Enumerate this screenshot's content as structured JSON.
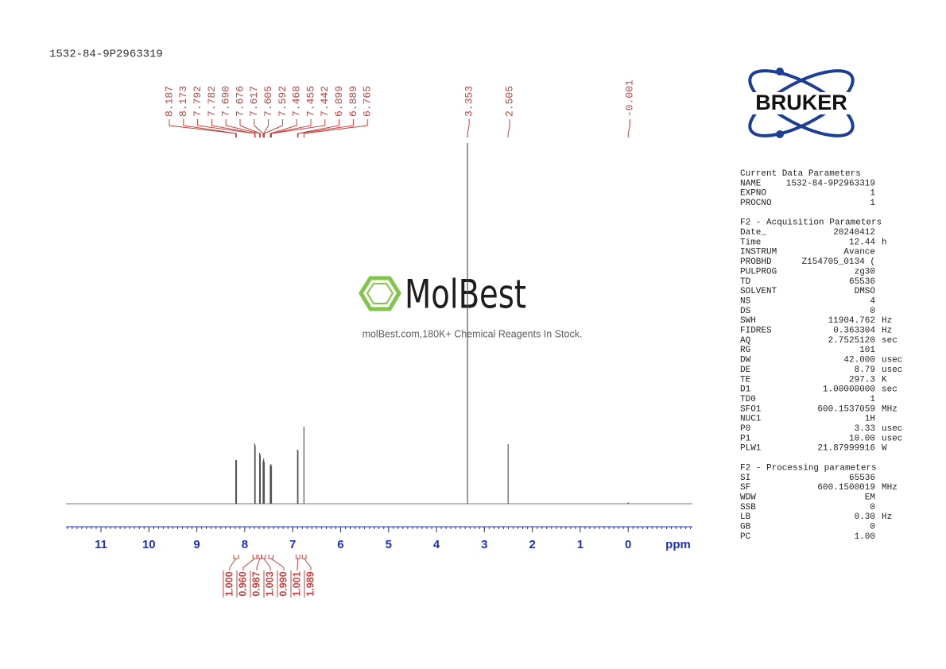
{
  "title": "1532-84-9P2963319",
  "logo": "BRUKER",
  "watermark": {
    "brand": "MolBest",
    "tagline": "molBest.com,180K+ Chemical Reagents In Stock."
  },
  "chart_data": {
    "type": "spectrum",
    "x_label": "ppm",
    "xlim": [
      11.73,
      -1.34
    ],
    "xticks": [
      11,
      10,
      9,
      8,
      7,
      6,
      5,
      4,
      3,
      2,
      1,
      0
    ],
    "ylim": [
      0,
      100
    ],
    "peaks": [
      8.187,
      8.173,
      7.792,
      7.782,
      {
        "value": 7.69,
        "label": "7.690"
      },
      7.676,
      7.617,
      7.605,
      7.592,
      7.468,
      7.455,
      7.442,
      6.899,
      6.889,
      6.765,
      3.353,
      2.505,
      -0.001
    ],
    "peak_heights": [
      12.1,
      12.1,
      16.7,
      16.2,
      14.1,
      13.5,
      11.9,
      12.5,
      11.5,
      10.6,
      11.0,
      10.5,
      15.0,
      14.8,
      21.4,
      100,
      16.5,
      0.4
    ],
    "integral_values": [
      {
        "value": 1,
        "label": "1.000"
      },
      {
        "value": 0.96,
        "label": "0.960"
      },
      0.987,
      1.003,
      {
        "value": 0.99,
        "label": "0.990"
      },
      1.001,
      1.989
    ],
    "integral_ranges": [
      [
        8.23,
        8.13
      ],
      [
        7.83,
        7.75
      ],
      [
        7.72,
        7.65
      ],
      [
        7.64,
        7.57
      ],
      [
        7.5,
        7.41
      ],
      [
        6.93,
        6.85
      ],
      [
        6.8,
        6.72
      ]
    ],
    "color": "#555555",
    "label_color": "#c8413f",
    "axis_color": "#1f2fbf"
  },
  "parameters": [
    {
      "title": "Current Data Parameters",
      "rows": [
        [
          "NAME",
          "1532-84-9P2963319"
        ],
        [
          "EXPNO",
          "1"
        ],
        [
          "PROCNO",
          "1"
        ]
      ]
    },
    {
      "title": "F2 - Acquisition Parameters",
      "rows": [
        [
          "Date_",
          "20240412"
        ],
        [
          "Time",
          "12.44",
          "h"
        ],
        [
          "INSTRUM",
          "Avance"
        ],
        [
          "PROBHD",
          "Z154705_0134 ("
        ],
        [
          "PULPROG",
          "zg30"
        ],
        [
          "TD",
          "65536"
        ],
        [
          "SOLVENT",
          "DMSO"
        ],
        [
          "NS",
          "4"
        ],
        [
          "DS",
          "0"
        ],
        [
          "SWH",
          "11904.762",
          "Hz"
        ],
        [
          "FIDRES",
          "0.363304",
          "Hz"
        ],
        [
          "AQ",
          "2.7525120",
          "sec"
        ],
        [
          "RG",
          "101"
        ],
        [
          "DW",
          "42.000",
          "usec"
        ],
        [
          "DE",
          "8.79",
          "usec"
        ],
        [
          "TE",
          "297.3",
          "K"
        ],
        [
          "D1",
          "1.00000000",
          "sec"
        ],
        [
          "TD0",
          "1"
        ],
        [
          "SFO1",
          "600.1537059",
          "MHz"
        ],
        [
          "NUC1",
          "1H"
        ],
        [
          "P0",
          "3.33",
          "usec"
        ],
        [
          "P1",
          "10.00",
          "usec"
        ],
        [
          "PLW1",
          "21.87999916",
          "W"
        ]
      ]
    },
    {
      "title": "F2 - Processing parameters",
      "rows": [
        [
          "SI",
          "65536"
        ],
        [
          "SF",
          "600.1500019",
          "MHz"
        ],
        [
          "WDW",
          "EM"
        ],
        [
          "SSB",
          "0"
        ],
        [
          "LB",
          "0.30",
          "Hz"
        ],
        [
          "GB",
          "0"
        ],
        [
          "PC",
          "1.00"
        ]
      ]
    }
  ]
}
